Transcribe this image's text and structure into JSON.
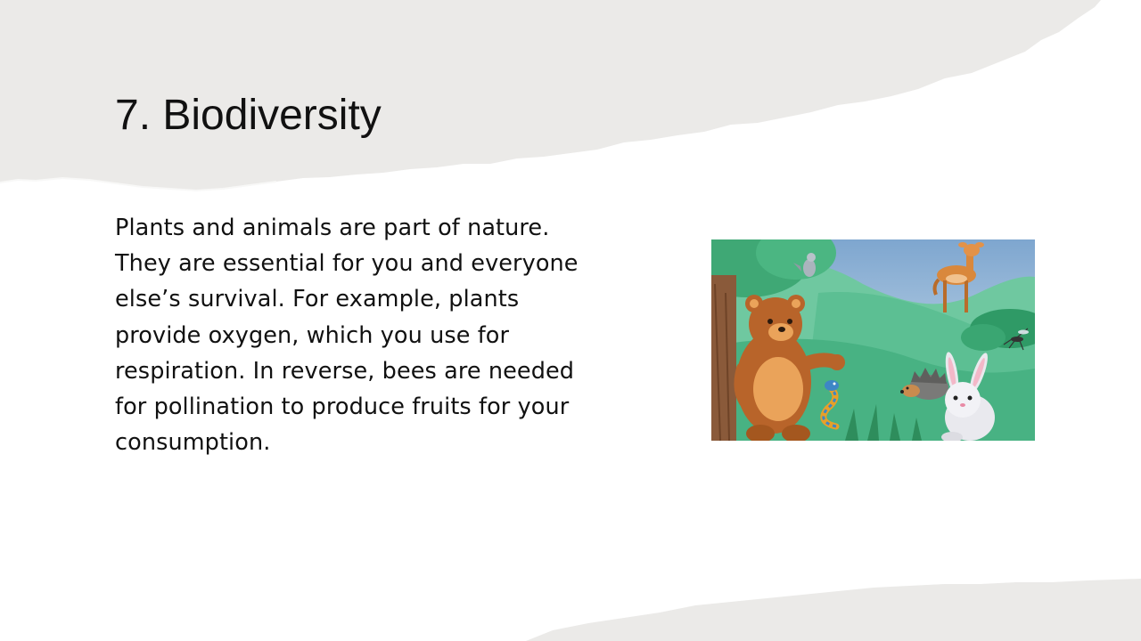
{
  "slide": {
    "title": "7. Biodiversity",
    "body_lines": [
      "Plants and animals are part of nature.",
      "They are essential for you and everyone",
      "else’s survival. For example, plants",
      "provide oxygen, which you use for",
      "respiration. In reverse, bees are needed",
      "for pollination to produce fruits for your",
      "consumption."
    ]
  },
  "colors": {
    "background": "#ffffff",
    "paper_tear": "#ebeae8",
    "text": "#111111",
    "sky": "#8fb4d6",
    "grass": "#4fb98a"
  },
  "illustration": {
    "icons": [
      "bear-icon",
      "deer-icon",
      "bird-icon",
      "snake-icon",
      "hedgehog-icon",
      "rabbit-icon",
      "mosquito-icon",
      "tree-icon"
    ]
  }
}
